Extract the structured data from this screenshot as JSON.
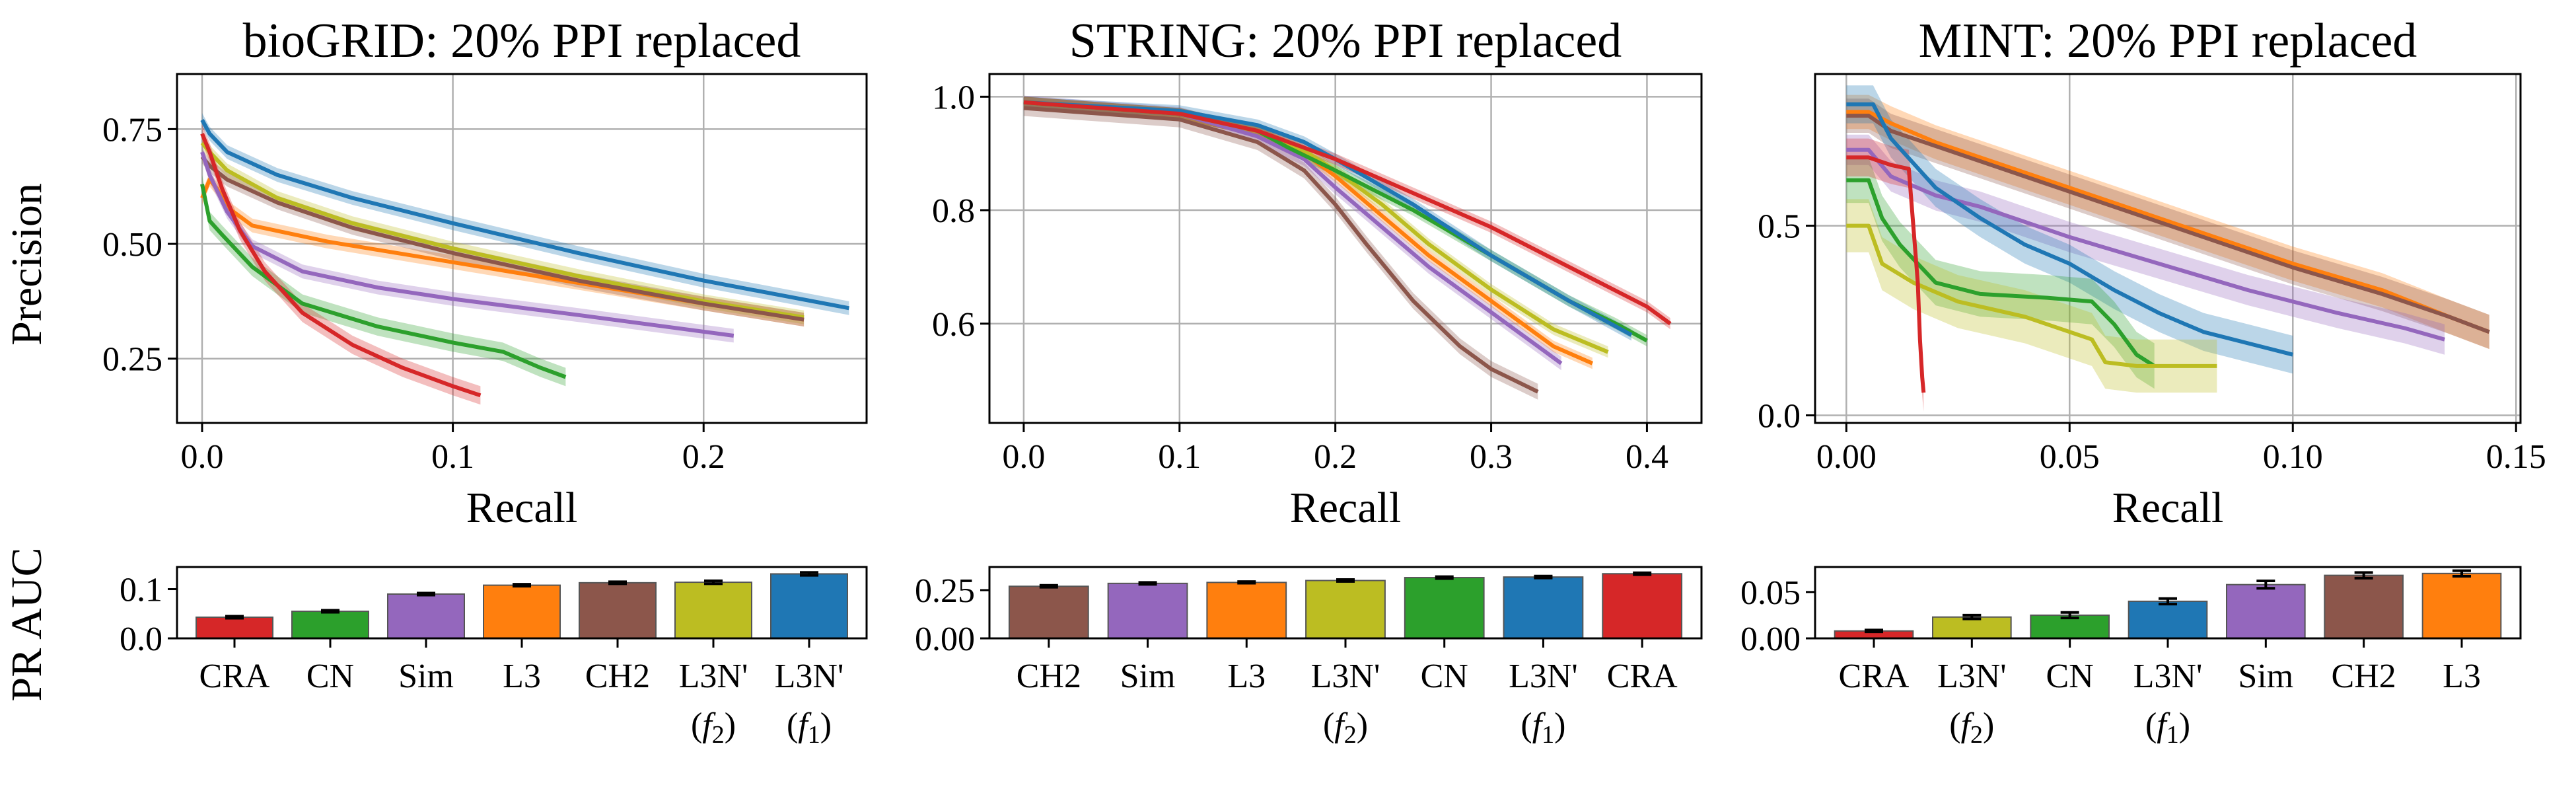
{
  "figure": {
    "ylabel_top": "Precision",
    "ylabel_bottom": "PR AUC",
    "xlabel": "Recall"
  },
  "colors": {
    "L3N' (f1)": "#1f77b4",
    "L3": "#ff7f0e",
    "CN": "#2ca02c",
    "CRA": "#d62728",
    "Sim": "#9467bd",
    "CH2": "#8c564b",
    "L3N' (f2)": "#bcbd22"
  },
  "chart_data": [
    {
      "type": "line",
      "title": "bioGRID: 20% PPI replaced",
      "xlabel": "Recall",
      "ylabel": "Precision",
      "xlim": [
        -0.01,
        0.265
      ],
      "ylim": [
        0.11,
        0.87
      ],
      "xticks": [
        0.0,
        0.1,
        0.2
      ],
      "xtick_labels": [
        "0.0",
        "0.1",
        "0.2"
      ],
      "yticks": [
        0.25,
        0.5,
        0.75
      ],
      "ytick_labels": [
        "0.25",
        "0.50",
        "0.75"
      ],
      "grid": true,
      "series": [
        {
          "key": "L3N' (f1)",
          "band": 0.015,
          "x": [
            0,
            0.003,
            0.01,
            0.03,
            0.06,
            0.1,
            0.15,
            0.2,
            0.258
          ],
          "y": [
            0.77,
            0.74,
            0.7,
            0.65,
            0.6,
            0.545,
            0.48,
            0.42,
            0.36
          ]
        },
        {
          "key": "L3",
          "band": 0.015,
          "x": [
            0,
            0.003,
            0.006,
            0.01,
            0.02,
            0.05,
            0.1,
            0.15,
            0.2,
            0.24
          ],
          "y": [
            0.6,
            0.64,
            0.62,
            0.58,
            0.54,
            0.505,
            0.46,
            0.415,
            0.37,
            0.335
          ]
        },
        {
          "key": "L3N' (f2)",
          "band": 0.015,
          "x": [
            0,
            0.003,
            0.01,
            0.03,
            0.06,
            0.1,
            0.15,
            0.2,
            0.24
          ],
          "y": [
            0.72,
            0.7,
            0.66,
            0.6,
            0.545,
            0.49,
            0.43,
            0.375,
            0.34
          ]
        },
        {
          "key": "CH2",
          "band": 0.015,
          "x": [
            0,
            0.003,
            0.01,
            0.03,
            0.06,
            0.1,
            0.15,
            0.2,
            0.24
          ],
          "y": [
            0.69,
            0.67,
            0.64,
            0.59,
            0.535,
            0.48,
            0.42,
            0.37,
            0.335
          ]
        },
        {
          "key": "Sim",
          "band": 0.015,
          "x": [
            0,
            0.003,
            0.01,
            0.02,
            0.04,
            0.07,
            0.1,
            0.15,
            0.212
          ],
          "y": [
            0.7,
            0.65,
            0.57,
            0.495,
            0.44,
            0.405,
            0.38,
            0.345,
            0.3
          ]
        },
        {
          "key": "CN",
          "band": 0.02,
          "x": [
            0,
            0.003,
            0.008,
            0.02,
            0.04,
            0.07,
            0.1,
            0.12,
            0.135,
            0.145
          ],
          "y": [
            0.63,
            0.55,
            0.52,
            0.45,
            0.37,
            0.32,
            0.285,
            0.265,
            0.23,
            0.21
          ]
        },
        {
          "key": "CRA",
          "band": 0.02,
          "x": [
            0,
            0.003,
            0.008,
            0.015,
            0.025,
            0.04,
            0.06,
            0.08,
            0.1,
            0.111
          ],
          "y": [
            0.74,
            0.7,
            0.62,
            0.53,
            0.44,
            0.35,
            0.28,
            0.23,
            0.19,
            0.17
          ]
        }
      ]
    },
    {
      "type": "line",
      "title": "STRING: 20% PPI replaced",
      "xlabel": "Recall",
      "ylabel": "",
      "xlim": [
        -0.022,
        0.435
      ],
      "ylim": [
        0.425,
        1.04
      ],
      "xticks": [
        0.0,
        0.1,
        0.2,
        0.3,
        0.4
      ],
      "xtick_labels": [
        "0.0",
        "0.1",
        "0.2",
        "0.3",
        "0.4"
      ],
      "yticks": [
        0.6,
        0.8,
        1.0
      ],
      "ytick_labels": [
        "0.6",
        "0.8",
        "1.0"
      ],
      "grid": true,
      "series": [
        {
          "key": "CH2",
          "band": 0.014,
          "x": [
            0,
            0.1,
            0.15,
            0.18,
            0.2,
            0.22,
            0.25,
            0.28,
            0.3,
            0.33
          ],
          "y": [
            0.98,
            0.96,
            0.92,
            0.87,
            0.81,
            0.74,
            0.64,
            0.56,
            0.52,
            0.48
          ]
        },
        {
          "key": "Sim",
          "band": 0.012,
          "x": [
            0,
            0.1,
            0.15,
            0.18,
            0.2,
            0.23,
            0.26,
            0.3,
            0.33,
            0.345
          ],
          "y": [
            0.99,
            0.97,
            0.93,
            0.89,
            0.84,
            0.77,
            0.7,
            0.62,
            0.56,
            0.53
          ]
        },
        {
          "key": "L3",
          "band": 0.01,
          "x": [
            0,
            0.1,
            0.15,
            0.18,
            0.2,
            0.23,
            0.26,
            0.3,
            0.34,
            0.365
          ],
          "y": [
            0.99,
            0.97,
            0.94,
            0.9,
            0.86,
            0.79,
            0.72,
            0.64,
            0.56,
            0.53
          ]
        },
        {
          "key": "L3N' (f2)",
          "band": 0.01,
          "x": [
            0,
            0.1,
            0.15,
            0.18,
            0.2,
            0.23,
            0.26,
            0.3,
            0.34,
            0.375
          ],
          "y": [
            0.99,
            0.97,
            0.94,
            0.905,
            0.87,
            0.81,
            0.74,
            0.66,
            0.59,
            0.55
          ]
        },
        {
          "key": "CN",
          "band": 0.01,
          "x": [
            0,
            0.1,
            0.15,
            0.17,
            0.2,
            0.25,
            0.3,
            0.35,
            0.38,
            0.4
          ],
          "y": [
            0.99,
            0.97,
            0.94,
            0.91,
            0.87,
            0.8,
            0.72,
            0.64,
            0.6,
            0.57
          ]
        },
        {
          "key": "L3N' (f1)",
          "band": 0.01,
          "x": [
            0,
            0.1,
            0.15,
            0.18,
            0.2,
            0.25,
            0.3,
            0.35,
            0.39
          ],
          "y": [
            0.99,
            0.975,
            0.95,
            0.92,
            0.89,
            0.81,
            0.72,
            0.64,
            0.58
          ]
        },
        {
          "key": "CRA",
          "band": 0.01,
          "x": [
            0,
            0.1,
            0.15,
            0.18,
            0.2,
            0.25,
            0.3,
            0.35,
            0.4,
            0.415
          ],
          "y": [
            0.99,
            0.97,
            0.94,
            0.91,
            0.89,
            0.83,
            0.77,
            0.7,
            0.63,
            0.6
          ]
        }
      ]
    },
    {
      "type": "line",
      "title": "MINT: 20% PPI replaced",
      "xlabel": "Recall",
      "ylabel": "",
      "xlim": [
        -0.007,
        0.151
      ],
      "ylim": [
        -0.02,
        0.9
      ],
      "xticks": [
        0.0,
        0.05,
        0.1,
        0.15
      ],
      "xtick_labels": [
        "0.00",
        "0.05",
        "0.10",
        "0.15"
      ],
      "yticks": [
        0.0,
        0.5
      ],
      "ytick_labels": [
        "0.0",
        "0.5"
      ],
      "grid": true,
      "series": [
        {
          "key": "L3",
          "band": 0.045,
          "x": [
            0,
            0.005,
            0.01,
            0.02,
            0.04,
            0.06,
            0.08,
            0.1,
            0.12,
            0.135,
            0.144
          ],
          "y": [
            0.8,
            0.8,
            0.77,
            0.72,
            0.64,
            0.56,
            0.48,
            0.4,
            0.33,
            0.26,
            0.22
          ]
        },
        {
          "key": "CH2",
          "band": 0.045,
          "x": [
            0,
            0.005,
            0.01,
            0.02,
            0.04,
            0.06,
            0.08,
            0.1,
            0.12,
            0.135,
            0.144
          ],
          "y": [
            0.79,
            0.79,
            0.75,
            0.71,
            0.63,
            0.55,
            0.47,
            0.39,
            0.32,
            0.26,
            0.22
          ]
        },
        {
          "key": "Sim",
          "band": 0.04,
          "x": [
            0,
            0.005,
            0.01,
            0.02,
            0.03,
            0.05,
            0.07,
            0.09,
            0.11,
            0.125,
            0.134
          ],
          "y": [
            0.7,
            0.7,
            0.63,
            0.58,
            0.55,
            0.47,
            0.4,
            0.33,
            0.27,
            0.23,
            0.2
          ]
        },
        {
          "key": "L3N' (f1)",
          "band": 0.05,
          "x": [
            0,
            0.006,
            0.01,
            0.02,
            0.03,
            0.04,
            0.05,
            0.06,
            0.07,
            0.08,
            0.09,
            0.1
          ],
          "y": [
            0.82,
            0.82,
            0.73,
            0.6,
            0.52,
            0.45,
            0.4,
            0.33,
            0.27,
            0.22,
            0.19,
            0.16
          ]
        },
        {
          "key": "CN",
          "band": 0.06,
          "x": [
            0,
            0.005,
            0.008,
            0.012,
            0.02,
            0.03,
            0.045,
            0.055,
            0.06,
            0.065,
            0.069
          ],
          "y": [
            0.62,
            0.62,
            0.52,
            0.45,
            0.35,
            0.32,
            0.31,
            0.3,
            0.24,
            0.16,
            0.13
          ]
        },
        {
          "key": "L3N' (f2)",
          "band": 0.07,
          "x": [
            0,
            0.005,
            0.008,
            0.015,
            0.025,
            0.04,
            0.055,
            0.058,
            0.065,
            0.083
          ],
          "y": [
            0.5,
            0.5,
            0.4,
            0.35,
            0.3,
            0.26,
            0.2,
            0.14,
            0.13,
            0.13
          ]
        },
        {
          "key": "CRA",
          "band": 0.05,
          "x": [
            0,
            0.005,
            0.01,
            0.014,
            0.015,
            0.016,
            0.0165,
            0.017,
            0.0173
          ],
          "y": [
            0.68,
            0.68,
            0.66,
            0.65,
            0.5,
            0.35,
            0.2,
            0.1,
            0.06
          ]
        }
      ]
    },
    {
      "type": "bar",
      "title": "",
      "ylabel": "PR AUC",
      "ylim": [
        0,
        0.145
      ],
      "yticks": [
        0.0,
        0.1
      ],
      "ytick_labels": [
        "0.0",
        "0.1"
      ],
      "categories": [
        [
          "CRA"
        ],
        [
          "CN"
        ],
        [
          "Sim"
        ],
        [
          "L3"
        ],
        [
          "CH2"
        ],
        [
          "L3N'",
          "(f2)"
        ],
        [
          "L3N'",
          "(f1)"
        ]
      ],
      "keys": [
        "CRA",
        "CN",
        "Sim",
        "L3",
        "CH2",
        "L3N' (f2)",
        "L3N' (f1)"
      ],
      "values": [
        0.043,
        0.055,
        0.09,
        0.108,
        0.113,
        0.114,
        0.131
      ],
      "errors": [
        0.002,
        0.002,
        0.002,
        0.002,
        0.002,
        0.003,
        0.003
      ]
    },
    {
      "type": "bar",
      "title": "",
      "ylabel": "",
      "ylim": [
        0,
        0.37
      ],
      "yticks": [
        0.0,
        0.25
      ],
      "ytick_labels": [
        "0.00",
        "0.25"
      ],
      "categories": [
        [
          "CH2"
        ],
        [
          "Sim"
        ],
        [
          "L3"
        ],
        [
          "L3N'",
          "(f2)"
        ],
        [
          "CN"
        ],
        [
          "L3N'",
          "(f1)"
        ],
        [
          "CRA"
        ]
      ],
      "keys": [
        "CH2",
        "Sim",
        "L3",
        "L3N' (f2)",
        "CN",
        "L3N' (f1)",
        "CRA"
      ],
      "values": [
        0.27,
        0.285,
        0.29,
        0.3,
        0.315,
        0.318,
        0.335
      ],
      "errors": [
        0.005,
        0.005,
        0.004,
        0.005,
        0.005,
        0.005,
        0.005
      ]
    },
    {
      "type": "bar",
      "title": "",
      "ylabel": "",
      "ylim": [
        0,
        0.077
      ],
      "yticks": [
        0.0,
        0.05
      ],
      "ytick_labels": [
        "0.00",
        "0.05"
      ],
      "categories": [
        [
          "CRA"
        ],
        [
          "L3N'",
          "(f2)"
        ],
        [
          "CN"
        ],
        [
          "L3N'",
          "(f1)"
        ],
        [
          "Sim"
        ],
        [
          "CH2"
        ],
        [
          "L3"
        ]
      ],
      "keys": [
        "CRA",
        "L3N' (f2)",
        "CN",
        "L3N' (f1)",
        "Sim",
        "CH2",
        "L3"
      ],
      "values": [
        0.008,
        0.023,
        0.025,
        0.04,
        0.058,
        0.068,
        0.07
      ],
      "errors": [
        0.001,
        0.002,
        0.003,
        0.003,
        0.004,
        0.003,
        0.003
      ]
    }
  ]
}
